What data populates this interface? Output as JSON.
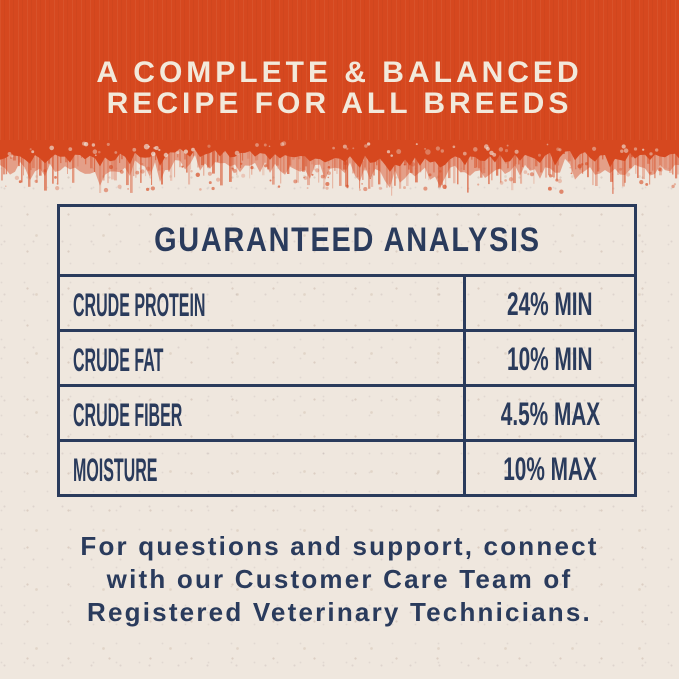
{
  "colors": {
    "orange": "#D6481F",
    "navy": "#2A3B5C",
    "cream": "#EFE7DE",
    "headline_cream": "#F2E9DB"
  },
  "header": {
    "lines": [
      "A COMPLETE & BALANCED",
      "RECIPE FOR ALL BREEDS"
    ]
  },
  "table": {
    "title": "GUARANTEED ANALYSIS",
    "rows": [
      {
        "label": "CRUDE PROTEIN",
        "value": "24% MIN"
      },
      {
        "label": "CRUDE FAT",
        "value": "10% MIN"
      },
      {
        "label": "CRUDE FIBER",
        "value": "4.5% MAX"
      },
      {
        "label": "MOISTURE",
        "value": "10% MAX"
      }
    ]
  },
  "footer": {
    "lines": [
      "For questions and support, connect",
      "with our Customer Care Team of",
      "Registered Veterinary Technicians."
    ]
  }
}
